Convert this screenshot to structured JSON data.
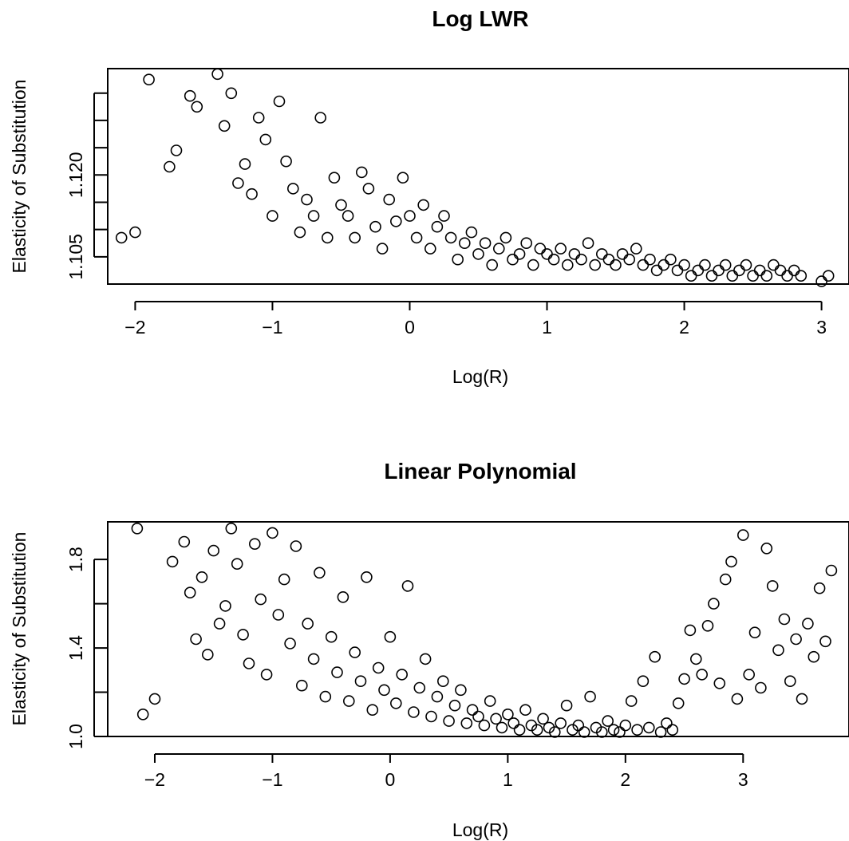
{
  "chart_data": [
    {
      "type": "scatter",
      "title": "Log LWR",
      "xlabel": "Log(R)",
      "ylabel": "Elasticity of Substitution",
      "xlim": [
        -2.2,
        3.2
      ],
      "ylim": [
        1.1,
        1.1395
      ],
      "xticks": [
        -2,
        -1,
        0,
        1,
        2,
        3
      ],
      "xtick_labels": [
        "−2",
        "−1",
        "0",
        "1",
        "2",
        "3"
      ],
      "yticks": [
        1.105,
        1.11,
        1.115,
        1.12,
        1.125,
        1.13,
        1.135
      ],
      "ytick_labels": [
        "1.105",
        "",
        "",
        "1.120",
        "",
        "",
        ""
      ],
      "grid": false,
      "marker": "open-circle",
      "color": "#000000",
      "points": [
        [
          -2.1,
          1.1085
        ],
        [
          -2.0,
          1.1095
        ],
        [
          -1.9,
          1.1375
        ],
        [
          -1.75,
          1.1215
        ],
        [
          -1.7,
          1.1245
        ],
        [
          -1.6,
          1.1345
        ],
        [
          -1.55,
          1.1325
        ],
        [
          -1.4,
          1.1385
        ],
        [
          -1.35,
          1.129
        ],
        [
          -1.3,
          1.135
        ],
        [
          -1.25,
          1.1185
        ],
        [
          -1.2,
          1.122
        ],
        [
          -1.15,
          1.1165
        ],
        [
          -1.1,
          1.1305
        ],
        [
          -1.05,
          1.1265
        ],
        [
          -1.0,
          1.1125
        ],
        [
          -0.95,
          1.1335
        ],
        [
          -0.9,
          1.1225
        ],
        [
          -0.85,
          1.1175
        ],
        [
          -0.8,
          1.1095
        ],
        [
          -0.75,
          1.1155
        ],
        [
          -0.7,
          1.1125
        ],
        [
          -0.65,
          1.1305
        ],
        [
          -0.6,
          1.1085
        ],
        [
          -0.55,
          1.1195
        ],
        [
          -0.5,
          1.1145
        ],
        [
          -0.45,
          1.1125
        ],
        [
          -0.4,
          1.1085
        ],
        [
          -0.35,
          1.1205
        ],
        [
          -0.3,
          1.1175
        ],
        [
          -0.25,
          1.1105
        ],
        [
          -0.2,
          1.1065
        ],
        [
          -0.15,
          1.1155
        ],
        [
          -0.1,
          1.1115
        ],
        [
          -0.05,
          1.1195
        ],
        [
          0.0,
          1.1125
        ],
        [
          0.05,
          1.1085
        ],
        [
          0.1,
          1.1145
        ],
        [
          0.15,
          1.1065
        ],
        [
          0.2,
          1.1105
        ],
        [
          0.25,
          1.1125
        ],
        [
          0.3,
          1.1085
        ],
        [
          0.35,
          1.1045
        ],
        [
          0.4,
          1.1075
        ],
        [
          0.45,
          1.1095
        ],
        [
          0.5,
          1.1055
        ],
        [
          0.55,
          1.1075
        ],
        [
          0.6,
          1.1035
        ],
        [
          0.65,
          1.1065
        ],
        [
          0.7,
          1.1085
        ],
        [
          0.75,
          1.1045
        ],
        [
          0.8,
          1.1055
        ],
        [
          0.85,
          1.1075
        ],
        [
          0.9,
          1.1035
        ],
        [
          0.95,
          1.1065
        ],
        [
          1.0,
          1.1055
        ],
        [
          1.05,
          1.1045
        ],
        [
          1.1,
          1.1065
        ],
        [
          1.15,
          1.1035
        ],
        [
          1.2,
          1.1055
        ],
        [
          1.25,
          1.1045
        ],
        [
          1.3,
          1.1075
        ],
        [
          1.35,
          1.1035
        ],
        [
          1.4,
          1.1055
        ],
        [
          1.45,
          1.1045
        ],
        [
          1.5,
          1.1035
        ],
        [
          1.55,
          1.1055
        ],
        [
          1.6,
          1.1045
        ],
        [
          1.65,
          1.1065
        ],
        [
          1.7,
          1.1035
        ],
        [
          1.75,
          1.1045
        ],
        [
          1.8,
          1.1025
        ],
        [
          1.85,
          1.1035
        ],
        [
          1.9,
          1.1045
        ],
        [
          1.95,
          1.1025
        ],
        [
          2.0,
          1.1035
        ],
        [
          2.05,
          1.1015
        ],
        [
          2.1,
          1.1025
        ],
        [
          2.15,
          1.1035
        ],
        [
          2.2,
          1.1015
        ],
        [
          2.25,
          1.1025
        ],
        [
          2.3,
          1.1035
        ],
        [
          2.35,
          1.1015
        ],
        [
          2.4,
          1.1025
        ],
        [
          2.45,
          1.1035
        ],
        [
          2.5,
          1.1015
        ],
        [
          2.55,
          1.1025
        ],
        [
          2.6,
          1.1015
        ],
        [
          2.65,
          1.1035
        ],
        [
          2.7,
          1.1025
        ],
        [
          2.75,
          1.1015
        ],
        [
          2.8,
          1.1025
        ],
        [
          2.85,
          1.1015
        ],
        [
          3.0,
          1.1005
        ],
        [
          3.05,
          1.1015
        ]
      ]
    },
    {
      "type": "scatter",
      "title": "Linear Polynomial",
      "xlabel": "Log(R)",
      "ylabel": "Elasticity of Substitution",
      "xlim": [
        -2.4,
        3.9
      ],
      "ylim": [
        1.0,
        1.97
      ],
      "xticks": [
        -2,
        -1,
        0,
        1,
        2,
        3
      ],
      "xtick_labels": [
        "−2",
        "−1",
        "0",
        "1",
        "2",
        "3"
      ],
      "yticks": [
        1.0,
        1.2,
        1.4,
        1.6,
        1.8
      ],
      "ytick_labels": [
        "1.0",
        "",
        "1.4",
        "",
        "1.8"
      ],
      "grid": false,
      "marker": "open-circle",
      "color": "#000000",
      "points": [
        [
          -2.15,
          1.94
        ],
        [
          -2.1,
          1.1
        ],
        [
          -2.0,
          1.17
        ],
        [
          -1.85,
          1.79
        ],
        [
          -1.75,
          1.88
        ],
        [
          -1.7,
          1.65
        ],
        [
          -1.65,
          1.44
        ],
        [
          -1.6,
          1.72
        ],
        [
          -1.55,
          1.37
        ],
        [
          -1.5,
          1.84
        ],
        [
          -1.45,
          1.51
        ],
        [
          -1.4,
          1.59
        ],
        [
          -1.35,
          1.94
        ],
        [
          -1.3,
          1.78
        ],
        [
          -1.25,
          1.46
        ],
        [
          -1.2,
          1.33
        ],
        [
          -1.15,
          1.87
        ],
        [
          -1.1,
          1.62
        ],
        [
          -1.05,
          1.28
        ],
        [
          -1.0,
          1.92
        ],
        [
          -0.95,
          1.55
        ],
        [
          -0.9,
          1.71
        ],
        [
          -0.85,
          1.42
        ],
        [
          -0.8,
          1.86
        ],
        [
          -0.75,
          1.23
        ],
        [
          -0.7,
          1.51
        ],
        [
          -0.65,
          1.35
        ],
        [
          -0.6,
          1.74
        ],
        [
          -0.55,
          1.18
        ],
        [
          -0.5,
          1.45
        ],
        [
          -0.45,
          1.29
        ],
        [
          -0.4,
          1.63
        ],
        [
          -0.35,
          1.16
        ],
        [
          -0.3,
          1.38
        ],
        [
          -0.25,
          1.25
        ],
        [
          -0.2,
          1.72
        ],
        [
          -0.15,
          1.12
        ],
        [
          -0.1,
          1.31
        ],
        [
          -0.05,
          1.21
        ],
        [
          0.0,
          1.45
        ],
        [
          0.05,
          1.15
        ],
        [
          0.1,
          1.28
        ],
        [
          0.15,
          1.68
        ],
        [
          0.2,
          1.11
        ],
        [
          0.25,
          1.22
        ],
        [
          0.3,
          1.35
        ],
        [
          0.35,
          1.09
        ],
        [
          0.4,
          1.18
        ],
        [
          0.45,
          1.25
        ],
        [
          0.5,
          1.07
        ],
        [
          0.55,
          1.14
        ],
        [
          0.6,
          1.21
        ],
        [
          0.65,
          1.06
        ],
        [
          0.7,
          1.12
        ],
        [
          0.75,
          1.09
        ],
        [
          0.8,
          1.05
        ],
        [
          0.85,
          1.16
        ],
        [
          0.9,
          1.08
        ],
        [
          0.95,
          1.04
        ],
        [
          1.0,
          1.1
        ],
        [
          1.05,
          1.06
        ],
        [
          1.1,
          1.03
        ],
        [
          1.15,
          1.12
        ],
        [
          1.2,
          1.05
        ],
        [
          1.25,
          1.03
        ],
        [
          1.3,
          1.08
        ],
        [
          1.35,
          1.04
        ],
        [
          1.4,
          1.02
        ],
        [
          1.45,
          1.06
        ],
        [
          1.5,
          1.14
        ],
        [
          1.55,
          1.03
        ],
        [
          1.6,
          1.05
        ],
        [
          1.65,
          1.02
        ],
        [
          1.7,
          1.18
        ],
        [
          1.75,
          1.04
        ],
        [
          1.8,
          1.02
        ],
        [
          1.85,
          1.07
        ],
        [
          1.9,
          1.03
        ],
        [
          1.95,
          1.02
        ],
        [
          2.0,
          1.05
        ],
        [
          2.05,
          1.16
        ],
        [
          2.1,
          1.03
        ],
        [
          2.15,
          1.25
        ],
        [
          2.2,
          1.04
        ],
        [
          2.25,
          1.36
        ],
        [
          2.3,
          1.02
        ],
        [
          2.35,
          1.06
        ],
        [
          2.4,
          1.03
        ],
        [
          2.45,
          1.15
        ],
        [
          2.5,
          1.26
        ],
        [
          2.55,
          1.48
        ],
        [
          2.6,
          1.35
        ],
        [
          2.65,
          1.28
        ],
        [
          2.7,
          1.5
        ],
        [
          2.75,
          1.6
        ],
        [
          2.8,
          1.24
        ],
        [
          2.85,
          1.71
        ],
        [
          2.9,
          1.79
        ],
        [
          2.95,
          1.17
        ],
        [
          3.0,
          1.91
        ],
        [
          3.05,
          1.28
        ],
        [
          3.1,
          1.47
        ],
        [
          3.15,
          1.22
        ],
        [
          3.2,
          1.85
        ],
        [
          3.25,
          1.68
        ],
        [
          3.3,
          1.39
        ],
        [
          3.35,
          1.53
        ],
        [
          3.4,
          1.25
        ],
        [
          3.45,
          1.44
        ],
        [
          3.5,
          1.17
        ],
        [
          3.55,
          1.51
        ],
        [
          3.6,
          1.36
        ],
        [
          3.65,
          1.67
        ],
        [
          3.7,
          1.43
        ],
        [
          3.75,
          1.75
        ]
      ]
    }
  ]
}
